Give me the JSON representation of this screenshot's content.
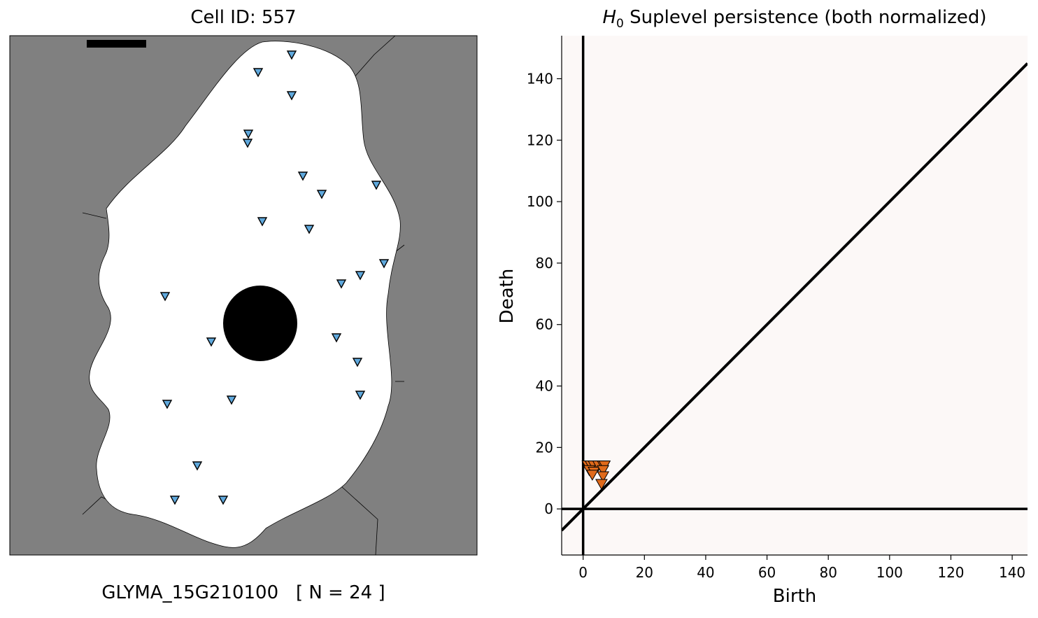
{
  "left_panel": {
    "title": "Cell ID: 557",
    "caption_gene": "GLYMA_15G210100",
    "caption_count": "[ N = 24 ]",
    "colors": {
      "background": "#808080",
      "cell": "#ffffff",
      "nucleus": "#000000",
      "marker": "#5fa8dc"
    },
    "marker_icon": "down-triangle-icon"
  },
  "chart_data": {
    "type": "scatter",
    "title_math": "H",
    "title_sub": "0",
    "title_text": " Suplevel persistence (both normalized)",
    "xlabel": "Birth",
    "ylabel": "Death",
    "xlim": [
      -7,
      145
    ],
    "ylim": [
      -15,
      154
    ],
    "xticks": [
      "0",
      "20",
      "40",
      "60",
      "80",
      "100",
      "120",
      "140"
    ],
    "yticks": [
      "0",
      "20",
      "40",
      "60",
      "80",
      "100",
      "120",
      "140"
    ],
    "grid": false,
    "background": "#fcf8f7",
    "marker_color": "#e06a1b",
    "reference_lines": [
      "x = 0",
      "y = 0",
      "y = x"
    ],
    "points": [
      {
        "x": 1.5,
        "y": 14
      },
      {
        "x": 2.5,
        "y": 14
      },
      {
        "x": 3.5,
        "y": 14
      },
      {
        "x": 5,
        "y": 14
      },
      {
        "x": 6.5,
        "y": 14
      },
      {
        "x": 7,
        "y": 14
      },
      {
        "x": 2,
        "y": 12.5
      },
      {
        "x": 3.5,
        "y": 12
      },
      {
        "x": 3,
        "y": 11
      },
      {
        "x": 6.5,
        "y": 12.5
      },
      {
        "x": 6.5,
        "y": 10.5
      },
      {
        "x": 6,
        "y": 8
      }
    ]
  }
}
